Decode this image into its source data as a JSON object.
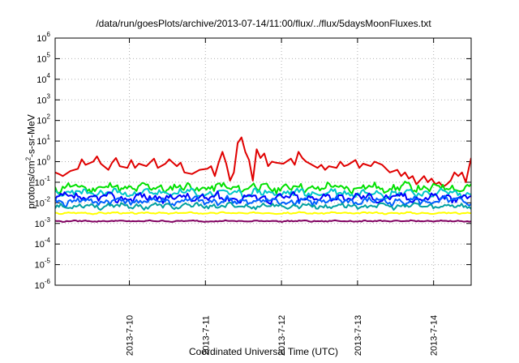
{
  "chart_data": {
    "type": "line",
    "title": "/data/run/goesPlots/archive/2013-07-14/11:00/flux/../flux/5daysMoonFluxes.txt",
    "xlabel": "Coordinated Universal Time (UTC)",
    "ylabel": {
      "prefix": "protons/cm",
      "sup": "2",
      "suffix": "-s-sr-MeV"
    },
    "yscale": "log",
    "ylim": [
      1e-06,
      1000000.0
    ],
    "yticks": [
      {
        "value": -6,
        "base": "10",
        "exp": "-6"
      },
      {
        "value": -5,
        "base": "10",
        "exp": "-5"
      },
      {
        "value": -4,
        "base": "10",
        "exp": "-4"
      },
      {
        "value": -3,
        "base": "10",
        "exp": "-3"
      },
      {
        "value": -2,
        "base": "10",
        "exp": "-2"
      },
      {
        "value": -1,
        "base": "10",
        "exp": "-1"
      },
      {
        "value": 0,
        "base": "10",
        "exp": "0"
      },
      {
        "value": 1,
        "base": "10",
        "exp": "1"
      },
      {
        "value": 2,
        "base": "10",
        "exp": "2"
      },
      {
        "value": 3,
        "base": "10",
        "exp": "3"
      },
      {
        "value": 4,
        "base": "10",
        "exp": "4"
      },
      {
        "value": 5,
        "base": "10",
        "exp": "5"
      },
      {
        "value": 6,
        "base": "10",
        "exp": "6"
      }
    ],
    "xlim": [
      "2013-07-09 00:35",
      "2013-07-14 12:00"
    ],
    "xticks": [
      "2013-7-10",
      "2013-7-11",
      "2013-7-12",
      "2013-7-13",
      "2013-7-14"
    ],
    "grid": true,
    "series": [
      {
        "color": "#e00000",
        "points": [
          [
            0,
            0.3
          ],
          [
            0.05,
            0.25
          ],
          [
            0.1,
            0.2
          ],
          [
            0.2,
            0.35
          ],
          [
            0.3,
            0.45
          ],
          [
            0.35,
            1.3
          ],
          [
            0.4,
            0.7
          ],
          [
            0.5,
            1.0
          ],
          [
            0.55,
            1.8
          ],
          [
            0.6,
            0.8
          ],
          [
            0.7,
            0.4
          ],
          [
            0.75,
            0.9
          ],
          [
            0.8,
            1.5
          ],
          [
            0.85,
            0.6
          ],
          [
            0.95,
            0.5
          ],
          [
            1.0,
            1.2
          ],
          [
            1.05,
            0.5
          ],
          [
            1.1,
            0.8
          ],
          [
            1.2,
            0.6
          ],
          [
            1.3,
            1.4
          ],
          [
            1.35,
            0.5
          ],
          [
            1.45,
            0.8
          ],
          [
            1.5,
            1.3
          ],
          [
            1.6,
            0.6
          ],
          [
            1.65,
            0.9
          ],
          [
            1.7,
            0.3
          ],
          [
            1.8,
            0.25
          ],
          [
            1.9,
            0.4
          ],
          [
            2.0,
            0.45
          ],
          [
            2.05,
            0.6
          ],
          [
            2.1,
            0.2
          ],
          [
            2.15,
            0.9
          ],
          [
            2.2,
            3.0
          ],
          [
            2.25,
            0.8
          ],
          [
            2.3,
            0.12
          ],
          [
            2.35,
            0.3
          ],
          [
            2.4,
            8
          ],
          [
            2.45,
            15
          ],
          [
            2.5,
            3
          ],
          [
            2.55,
            1.2
          ],
          [
            2.6,
            0.12
          ],
          [
            2.65,
            4.0
          ],
          [
            2.7,
            1.5
          ],
          [
            2.75,
            2.5
          ],
          [
            2.8,
            0.6
          ],
          [
            2.85,
            1.0
          ],
          [
            2.9,
            0.9
          ],
          [
            3.0,
            0.8
          ],
          [
            3.1,
            1.4
          ],
          [
            3.15,
            0.7
          ],
          [
            3.2,
            3.0
          ],
          [
            3.25,
            1.5
          ],
          [
            3.3,
            1.0
          ],
          [
            3.35,
            0.8
          ],
          [
            3.45,
            0.5
          ],
          [
            3.5,
            0.7
          ],
          [
            3.55,
            0.4
          ],
          [
            3.6,
            0.6
          ],
          [
            3.7,
            0.5
          ],
          [
            3.75,
            1.0
          ],
          [
            3.8,
            0.6
          ],
          [
            3.85,
            0.7
          ],
          [
            3.95,
            1.2
          ],
          [
            4.0,
            0.5
          ],
          [
            4.05,
            0.8
          ],
          [
            4.15,
            0.6
          ],
          [
            4.2,
            1.0
          ],
          [
            4.3,
            0.7
          ],
          [
            4.4,
            0.3
          ],
          [
            4.5,
            0.4
          ],
          [
            4.55,
            0.2
          ],
          [
            4.6,
            0.3
          ],
          [
            4.65,
            0.15
          ],
          [
            4.7,
            0.2
          ],
          [
            4.75,
            0.08
          ],
          [
            4.85,
            0.2
          ],
          [
            4.9,
            0.1
          ],
          [
            4.95,
            0.15
          ],
          [
            5.0,
            0.08
          ],
          [
            5.05,
            0.1
          ],
          [
            5.1,
            0.06
          ],
          [
            5.15,
            0.08
          ],
          [
            5.2,
            0.12
          ],
          [
            5.25,
            0.3
          ],
          [
            5.3,
            0.2
          ],
          [
            5.35,
            0.3
          ],
          [
            5.4,
            0.1
          ],
          [
            5.44,
            0.5
          ],
          [
            5.47,
            1.5
          ]
        ]
      },
      {
        "color": "#00e000",
        "base": 0.055,
        "spread": 0.55,
        "seed": 11
      },
      {
        "color": "#00c8c8",
        "base": 0.03,
        "spread": 0.5,
        "seed": 23
      },
      {
        "color": "#0000ff",
        "base": 0.018,
        "spread": 0.55,
        "seed": 37
      },
      {
        "color": "#0060ff",
        "base": 0.012,
        "spread": 0.5,
        "seed": 41
      },
      {
        "color": "#00a0a0",
        "base": 0.007,
        "spread": 0.35,
        "seed": 53
      },
      {
        "color": "#ffff00",
        "base": 0.0032,
        "spread": 0.1,
        "seed": 67
      },
      {
        "color": "#800060",
        "base": 0.0013,
        "spread": 0.08,
        "seed": 79
      }
    ]
  }
}
